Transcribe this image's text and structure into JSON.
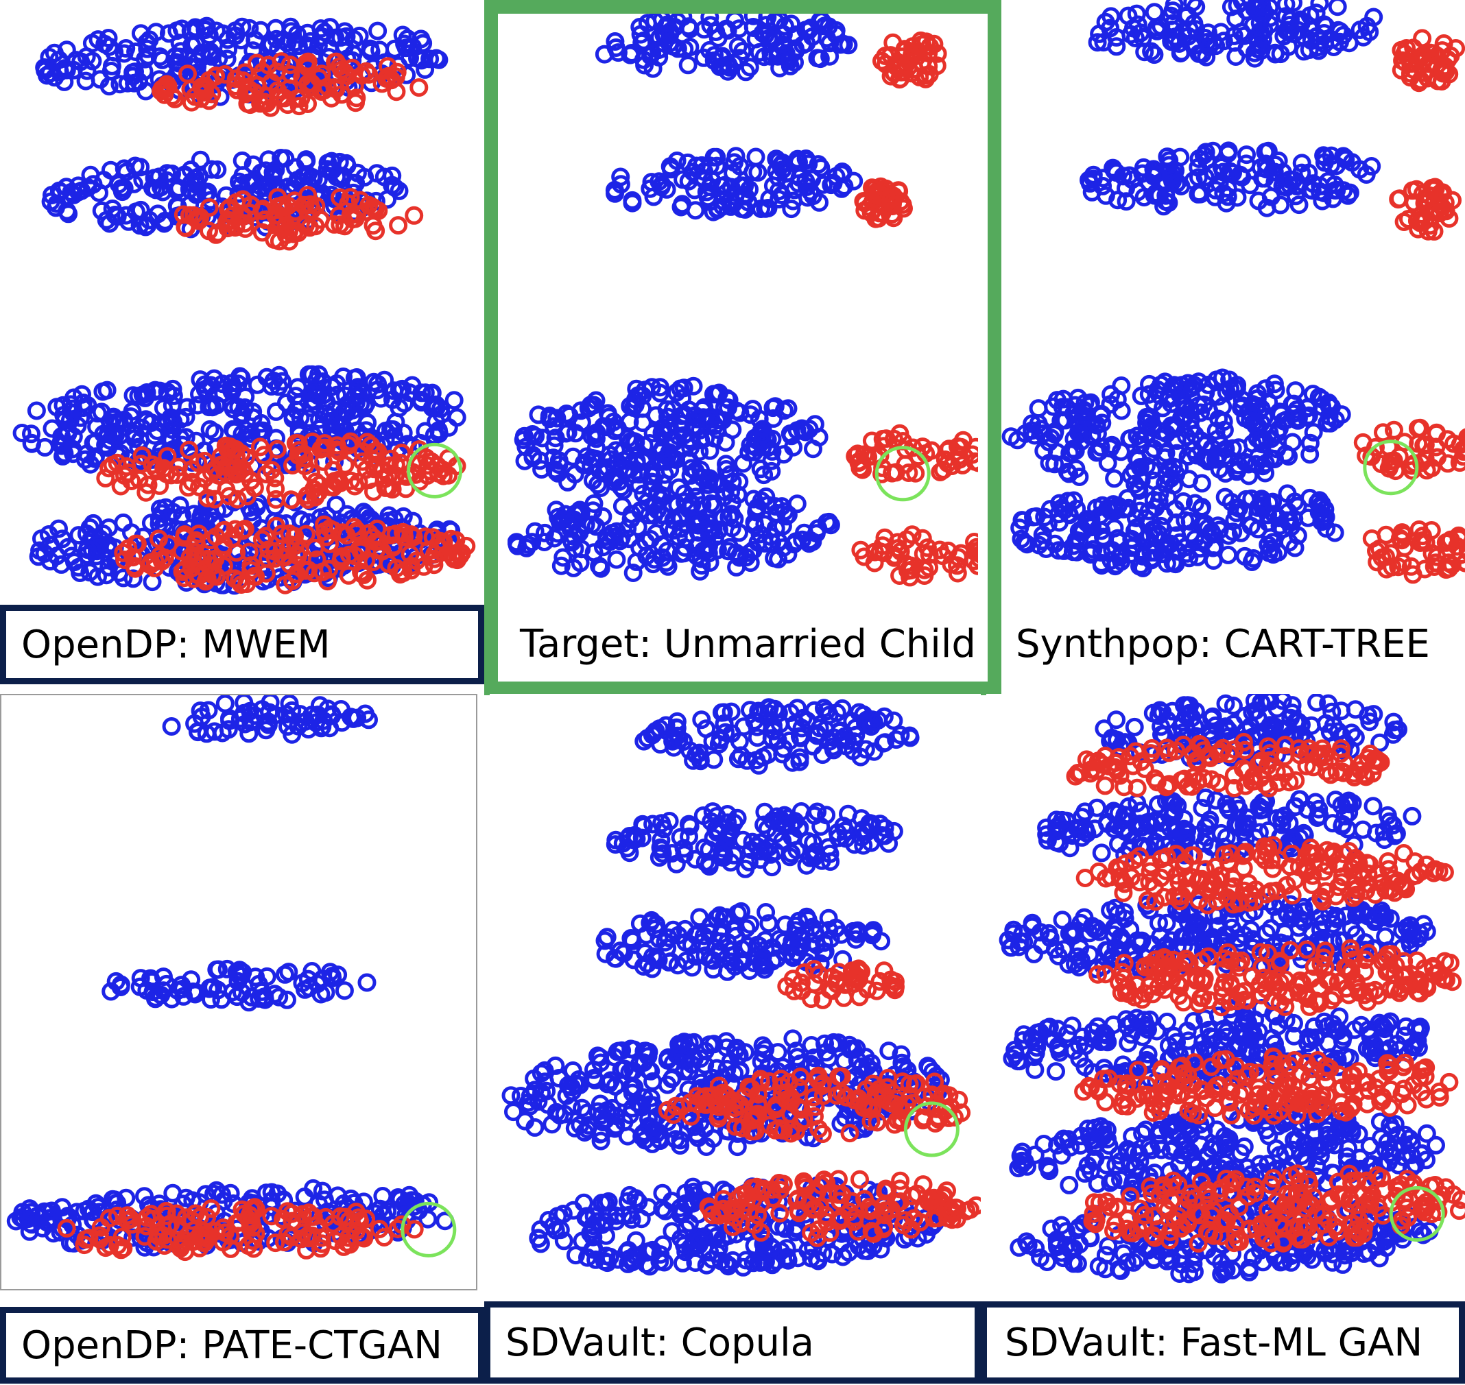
{
  "colors": {
    "blue": "#1d24e6",
    "red": "#e7322a",
    "green_ring": "#7be35b",
    "frame_green": "#55aa5c",
    "caption_border": "#0c1f4a"
  },
  "chart_data": [
    {
      "type": "scatter",
      "panel": "top-left",
      "caption": "OpenDP: MWEM",
      "series": [
        {
          "color": "blue"
        },
        {
          "color": "red"
        }
      ],
      "clusters": {
        "blue": [
          [
            0.5,
            0.1,
            0.42,
            0.06
          ],
          [
            0.47,
            0.32,
            0.37,
            0.06
          ],
          [
            0.5,
            0.7,
            0.47,
            0.08
          ],
          [
            0.5,
            0.9,
            0.45,
            0.07
          ]
        ],
        "red": [
          [
            0.6,
            0.14,
            0.28,
            0.04
          ],
          [
            0.62,
            0.36,
            0.25,
            0.04
          ],
          [
            0.58,
            0.78,
            0.37,
            0.05
          ],
          [
            0.6,
            0.92,
            0.37,
            0.05
          ]
        ]
      },
      "green_ring": true
    },
    {
      "type": "scatter",
      "panel": "top-middle",
      "caption": "Target: Unmarried Child",
      "series": [
        {
          "color": "blue"
        },
        {
          "color": "red"
        }
      ],
      "clusters": {
        "blue": [
          [
            0.47,
            0.05,
            0.28,
            0.05
          ],
          [
            0.49,
            0.29,
            0.27,
            0.05
          ],
          [
            0.34,
            0.72,
            0.33,
            0.09
          ],
          [
            0.35,
            0.88,
            0.34,
            0.07
          ]
        ],
        "red": [
          [
            0.86,
            0.08,
            0.07,
            0.04
          ],
          [
            0.8,
            0.32,
            0.05,
            0.03
          ],
          [
            0.87,
            0.75,
            0.14,
            0.04
          ],
          [
            0.88,
            0.92,
            0.14,
            0.04
          ]
        ]
      },
      "green_ring": true
    },
    {
      "type": "scatter",
      "panel": "top-right",
      "caption": "Synthpop: CART-TREE",
      "series": [
        {
          "color": "blue"
        },
        {
          "color": "red"
        }
      ],
      "clusters": {
        "blue": [
          [
            0.5,
            0.05,
            0.32,
            0.05
          ],
          [
            0.5,
            0.3,
            0.33,
            0.05
          ],
          [
            0.38,
            0.72,
            0.36,
            0.09
          ],
          [
            0.38,
            0.88,
            0.36,
            0.07
          ]
        ],
        "red": [
          [
            0.92,
            0.1,
            0.07,
            0.04
          ],
          [
            0.91,
            0.35,
            0.07,
            0.04
          ],
          [
            0.9,
            0.75,
            0.14,
            0.04
          ],
          [
            0.9,
            0.92,
            0.14,
            0.04
          ]
        ]
      },
      "green_ring": true
    },
    {
      "type": "scatter",
      "panel": "bottom-left",
      "caption": "OpenDP: PATE-CTGAN",
      "series": [
        {
          "color": "blue"
        },
        {
          "color": "red"
        }
      ],
      "clusters": {
        "blue": [
          [
            0.56,
            0.04,
            0.22,
            0.03
          ],
          [
            0.5,
            0.49,
            0.28,
            0.03
          ],
          [
            0.48,
            0.88,
            0.48,
            0.05
          ]
        ],
        "red": [
          [
            0.5,
            0.9,
            0.38,
            0.04
          ]
        ]
      },
      "green_ring": true
    },
    {
      "type": "scatter",
      "panel": "bottom-middle",
      "caption": "SDVault: Copula",
      "series": [
        {
          "color": "blue"
        },
        {
          "color": "red"
        }
      ],
      "clusters": {
        "blue": [
          [
            0.58,
            0.07,
            0.28,
            0.05
          ],
          [
            0.55,
            0.24,
            0.3,
            0.05
          ],
          [
            0.5,
            0.41,
            0.3,
            0.05
          ],
          [
            0.48,
            0.66,
            0.45,
            0.09
          ],
          [
            0.5,
            0.88,
            0.42,
            0.07
          ]
        ],
        "red": [
          [
            0.68,
            0.68,
            0.32,
            0.05
          ],
          [
            0.72,
            0.85,
            0.28,
            0.05
          ],
          [
            0.72,
            0.48,
            0.12,
            0.03
          ]
        ]
      },
      "green_ring": true
    },
    {
      "type": "scatter",
      "panel": "bottom-right",
      "caption": "SDVault: Fast-ML GAN",
      "series": [
        {
          "color": "blue"
        },
        {
          "color": "red"
        }
      ],
      "clusters": {
        "blue": [
          [
            0.55,
            0.06,
            0.32,
            0.05
          ],
          [
            0.5,
            0.22,
            0.4,
            0.05
          ],
          [
            0.48,
            0.4,
            0.45,
            0.06
          ],
          [
            0.48,
            0.58,
            0.45,
            0.06
          ],
          [
            0.5,
            0.76,
            0.45,
            0.07
          ],
          [
            0.5,
            0.9,
            0.44,
            0.06
          ]
        ],
        "red": [
          [
            0.5,
            0.12,
            0.35,
            0.04
          ],
          [
            0.58,
            0.3,
            0.38,
            0.05
          ],
          [
            0.6,
            0.47,
            0.4,
            0.05
          ],
          [
            0.6,
            0.65,
            0.4,
            0.05
          ],
          [
            0.6,
            0.85,
            0.4,
            0.06
          ]
        ]
      },
      "green_ring": true
    }
  ]
}
